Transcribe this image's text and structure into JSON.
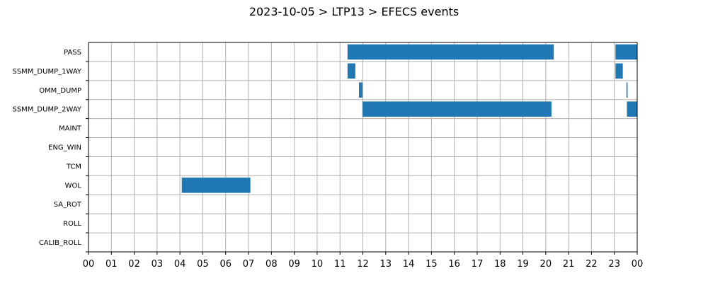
{
  "chart_data": {
    "type": "gantt",
    "title": "2023-10-05 > LTP13 > EFECS events",
    "xlabel": "",
    "ylabel": "",
    "x_unit": "hour",
    "xlim": [
      0,
      24
    ],
    "x_ticks": [
      "00",
      "01",
      "02",
      "03",
      "04",
      "05",
      "06",
      "07",
      "08",
      "09",
      "10",
      "11",
      "12",
      "13",
      "14",
      "15",
      "16",
      "17",
      "18",
      "19",
      "20",
      "21",
      "22",
      "23",
      "00"
    ],
    "grid": true,
    "bar_color": "#1f77b4",
    "categories": [
      "PASS",
      "SSMM_DUMP_1WAY",
      "OMM_DUMP",
      "SSMM_DUMP_2WAY",
      "MAINT",
      "ENG_WIN",
      "TCM",
      "WOL",
      "SA_ROT",
      "ROLL",
      "CALIB_ROLL"
    ],
    "series": [
      {
        "category": "PASS",
        "intervals": [
          [
            11.33,
            20.35
          ],
          [
            23.05,
            24.0
          ]
        ]
      },
      {
        "category": "SSMM_DUMP_1WAY",
        "intervals": [
          [
            11.33,
            11.67
          ],
          [
            23.05,
            23.37
          ]
        ]
      },
      {
        "category": "OMM_DUMP",
        "intervals": [
          [
            11.83,
            11.98
          ],
          [
            23.53,
            23.58
          ]
        ]
      },
      {
        "category": "SSMM_DUMP_2WAY",
        "intervals": [
          [
            11.98,
            20.25
          ],
          [
            23.55,
            24.0
          ]
        ]
      },
      {
        "category": "MAINT",
        "intervals": []
      },
      {
        "category": "ENG_WIN",
        "intervals": []
      },
      {
        "category": "TCM",
        "intervals": []
      },
      {
        "category": "WOL",
        "intervals": [
          [
            4.08,
            7.08
          ]
        ]
      },
      {
        "category": "SA_ROT",
        "intervals": []
      },
      {
        "category": "ROLL",
        "intervals": []
      },
      {
        "category": "CALIB_ROLL",
        "intervals": []
      }
    ]
  }
}
